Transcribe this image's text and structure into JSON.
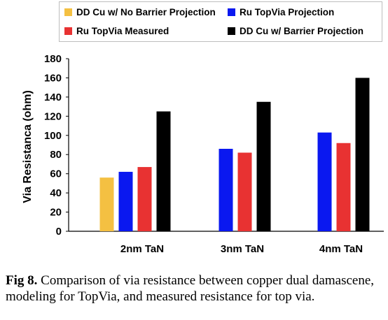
{
  "chart_data": {
    "type": "bar",
    "categories": [
      "2nm TaN",
      "3nm TaN",
      "4nm TaN"
    ],
    "series": [
      {
        "name": "DD Cu w/ No Barrier Projection",
        "color": "#f4c042",
        "values": [
          56,
          null,
          null
        ]
      },
      {
        "name": "Ru TopVia Projection",
        "color": "#0a18f0",
        "values": [
          62,
          86,
          103
        ]
      },
      {
        "name": "Ru TopVia Measured",
        "color": "#e83232",
        "values": [
          67,
          82,
          92
        ]
      },
      {
        "name": "DD Cu w/ Barrier Projection",
        "color": "#000000",
        "values": [
          125,
          135,
          160
        ]
      }
    ],
    "ylabel": "Via Resistanca (ohm)",
    "xlabel": "",
    "ylim": [
      0,
      180
    ],
    "yticks": [
      0,
      20,
      40,
      60,
      80,
      100,
      120,
      140,
      160,
      180
    ],
    "grid": false,
    "legend_position": "top"
  },
  "caption": {
    "label": "Fig 8.",
    "text": " Comparison of via resistance between copper dual damascene, modeling for TopVia, and measured resistance for top via."
  }
}
